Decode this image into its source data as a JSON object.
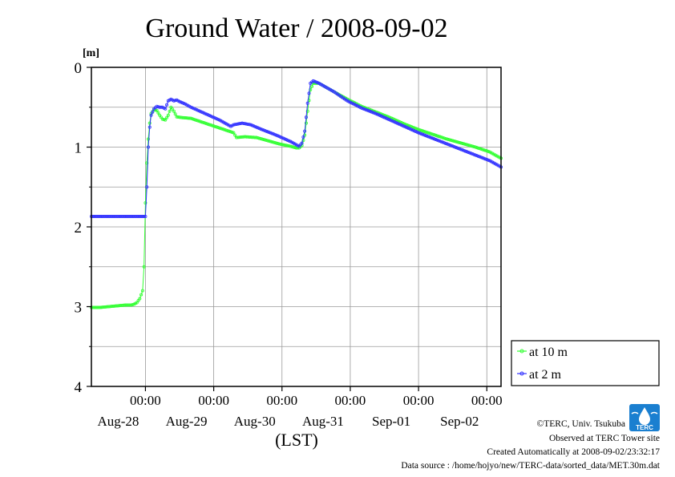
{
  "chart_data": {
    "type": "line",
    "title": "Ground Water / 2008-09-02",
    "ylabel": "[m]",
    "xlabel": "(LST)",
    "y_inverted": true,
    "ylim": [
      0,
      4
    ],
    "yticks": [
      "0",
      "1",
      "2",
      "3",
      "4"
    ],
    "xlim_hours": [
      0,
      144
    ],
    "x_ticks": [
      {
        "hour": 19,
        "time": "00:00",
        "date": "Aug-28"
      },
      {
        "hour": 43,
        "time": "00:00",
        "date": "Aug-29"
      },
      {
        "hour": 67,
        "time": "00:00",
        "date": "Aug-30"
      },
      {
        "hour": 91,
        "time": "00:00",
        "date": "Aug-31"
      },
      {
        "hour": 115,
        "time": "00:00",
        "date": "Sep-01"
      },
      {
        "hour": 139,
        "time": "00:00",
        "date": "Sep-02"
      }
    ],
    "grid": true,
    "legend_position": "bottom-right",
    "series": [
      {
        "name": "at 10 m",
        "color": "#33ff33",
        "points": [
          [
            0,
            3.01
          ],
          [
            3,
            3.01
          ],
          [
            6,
            3.0
          ],
          [
            9,
            2.99
          ],
          [
            12,
            2.98
          ],
          [
            14,
            2.98
          ],
          [
            15,
            2.97
          ],
          [
            16,
            2.95
          ],
          [
            17,
            2.9
          ],
          [
            18,
            2.8
          ],
          [
            18.5,
            2.5
          ],
          [
            19,
            1.7
          ],
          [
            19.5,
            1.2
          ],
          [
            20,
            0.9
          ],
          [
            20.5,
            0.7
          ],
          [
            21,
            0.58
          ],
          [
            22,
            0.53
          ],
          [
            23,
            0.54
          ],
          [
            24,
            0.6
          ],
          [
            25,
            0.65
          ],
          [
            26,
            0.66
          ],
          [
            27,
            0.6
          ],
          [
            28,
            0.5
          ],
          [
            29,
            0.55
          ],
          [
            30,
            0.62
          ],
          [
            32,
            0.63
          ],
          [
            35,
            0.64
          ],
          [
            40,
            0.7
          ],
          [
            45,
            0.76
          ],
          [
            50,
            0.82
          ],
          [
            51,
            0.88
          ],
          [
            54,
            0.87
          ],
          [
            58,
            0.88
          ],
          [
            62,
            0.92
          ],
          [
            66,
            0.96
          ],
          [
            70,
            0.99
          ],
          [
            72,
            1.01
          ],
          [
            73,
            1.01
          ],
          [
            74,
            0.98
          ],
          [
            75,
            0.85
          ],
          [
            76,
            0.55
          ],
          [
            77,
            0.28
          ],
          [
            78,
            0.2
          ],
          [
            80,
            0.2
          ],
          [
            85,
            0.3
          ],
          [
            90,
            0.4
          ],
          [
            95,
            0.49
          ],
          [
            100,
            0.56
          ],
          [
            105,
            0.63
          ],
          [
            110,
            0.71
          ],
          [
            115,
            0.78
          ],
          [
            120,
            0.84
          ],
          [
            125,
            0.9
          ],
          [
            130,
            0.95
          ],
          [
            135,
            1.0
          ],
          [
            140,
            1.06
          ],
          [
            144,
            1.14
          ]
        ]
      },
      {
        "name": "at 2 m",
        "color": "#3333ff",
        "points": [
          [
            0,
            1.87
          ],
          [
            5,
            1.87
          ],
          [
            10,
            1.87
          ],
          [
            15,
            1.87
          ],
          [
            19,
            1.87
          ],
          [
            19.5,
            1.5
          ],
          [
            20,
            1.0
          ],
          [
            20.5,
            0.75
          ],
          [
            21,
            0.6
          ],
          [
            22,
            0.52
          ],
          [
            23,
            0.49
          ],
          [
            24,
            0.5
          ],
          [
            25,
            0.5
          ],
          [
            26,
            0.52
          ],
          [
            27,
            0.42
          ],
          [
            28,
            0.4
          ],
          [
            29,
            0.42
          ],
          [
            30,
            0.41
          ],
          [
            31,
            0.43
          ],
          [
            33,
            0.46
          ],
          [
            35,
            0.5
          ],
          [
            40,
            0.58
          ],
          [
            45,
            0.66
          ],
          [
            48,
            0.72
          ],
          [
            49,
            0.74
          ],
          [
            50,
            0.72
          ],
          [
            53,
            0.7
          ],
          [
            56,
            0.72
          ],
          [
            60,
            0.78
          ],
          [
            65,
            0.85
          ],
          [
            70,
            0.93
          ],
          [
            72,
            0.97
          ],
          [
            73,
            0.99
          ],
          [
            74,
            0.95
          ],
          [
            75,
            0.8
          ],
          [
            76,
            0.45
          ],
          [
            77,
            0.2
          ],
          [
            78,
            0.17
          ],
          [
            80,
            0.2
          ],
          [
            85,
            0.3
          ],
          [
            90,
            0.42
          ],
          [
            95,
            0.51
          ],
          [
            100,
            0.58
          ],
          [
            105,
            0.66
          ],
          [
            110,
            0.74
          ],
          [
            115,
            0.82
          ],
          [
            120,
            0.89
          ],
          [
            125,
            0.96
          ],
          [
            130,
            1.03
          ],
          [
            135,
            1.1
          ],
          [
            140,
            1.17
          ],
          [
            144,
            1.25
          ]
        ]
      }
    ]
  },
  "footer": {
    "credit": "©TERC, Univ. Tsukuba",
    "observed": "Observed at TERC Tower site",
    "created": "Created Automatically at 2008-09-02/23:32:17",
    "source": "Data source : /home/hojyo/new/TERC-data/sorted_data/MET.30m.dat",
    "logo_text": "TERC"
  }
}
